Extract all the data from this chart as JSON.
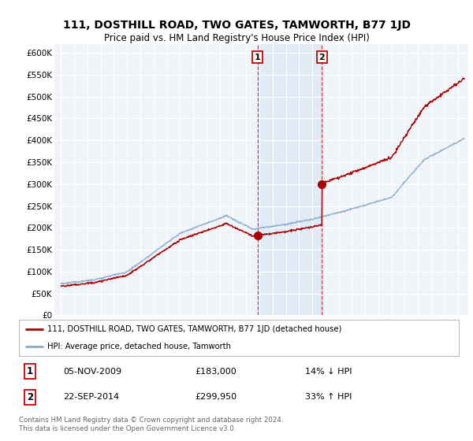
{
  "title": "111, DOSTHILL ROAD, TWO GATES, TAMWORTH, B77 1JD",
  "subtitle": "Price paid vs. HM Land Registry's House Price Index (HPI)",
  "ylim": [
    0,
    620000
  ],
  "yticks": [
    0,
    50000,
    100000,
    150000,
    200000,
    250000,
    300000,
    350000,
    400000,
    450000,
    500000,
    550000,
    600000
  ],
  "ytick_labels": [
    "£0",
    "£50K",
    "£100K",
    "£150K",
    "£200K",
    "£250K",
    "£300K",
    "£350K",
    "£400K",
    "£450K",
    "£500K",
    "£550K",
    "£600K"
  ],
  "background_color": "#ffffff",
  "plot_bg_color": "#f0f4f8",
  "grid_color": "#ffffff",
  "legend_label_red": "111, DOSTHILL ROAD, TWO GATES, TAMWORTH, B77 1JD (detached house)",
  "legend_label_blue": "HPI: Average price, detached house, Tamworth",
  "transaction1_date": "05-NOV-2009",
  "transaction1_price": 183000,
  "transaction1_pct": "14% ↓ HPI",
  "transaction2_date": "22-SEP-2014",
  "transaction2_price": 299950,
  "transaction2_pct": "33% ↑ HPI",
  "footer": "Contains HM Land Registry data © Crown copyright and database right 2024.\nThis data is licensed under the Open Government Licence v3.0.",
  "red_color": "#aa0000",
  "blue_color": "#88aacc",
  "vline_color": "#dd2222",
  "shade_color": "#dce8f5",
  "box_edge_color": "#cc0000",
  "t1_year": 2009.87,
  "t2_year": 2014.72,
  "price1": 183000,
  "price2": 299950,
  "xlim_left": 1994.5,
  "xlim_right": 2025.8,
  "year_start": 1995,
  "year_end": 2025
}
